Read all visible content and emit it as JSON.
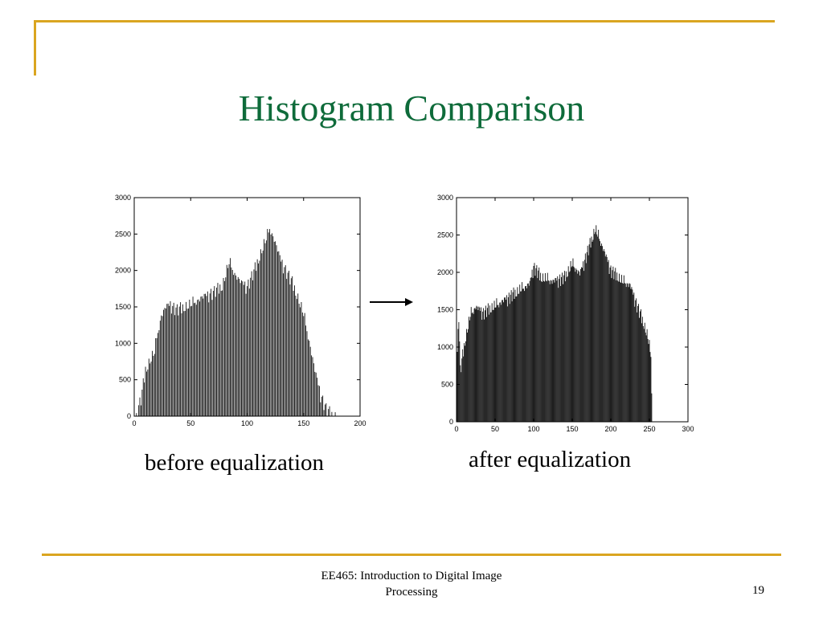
{
  "slide": {
    "title": "Histogram Comparison",
    "footer_line1": "EE465: Introduction to Digital Image",
    "footer_line2": "Processing",
    "page_number": "19",
    "accent_color": "#DAA520",
    "title_color": "#0E6B3A"
  },
  "captions": {
    "before": "before equalization",
    "after": "after equalization"
  },
  "chart_data": [
    {
      "type": "bar",
      "xlim": [
        0,
        200
      ],
      "ylim": [
        0,
        3000
      ],
      "xticks": [
        0,
        50,
        100,
        150,
        200
      ],
      "yticks": [
        0,
        500,
        1000,
        1500,
        2000,
        2500,
        3000
      ],
      "xrange_bins": [
        2,
        180
      ],
      "profile": [
        [
          2,
          0
        ],
        [
          4,
          150
        ],
        [
          6,
          250
        ],
        [
          8,
          450
        ],
        [
          10,
          650
        ],
        [
          14,
          780
        ],
        [
          18,
          900
        ],
        [
          20,
          1100
        ],
        [
          24,
          1400
        ],
        [
          28,
          1520
        ],
        [
          32,
          1550
        ],
        [
          38,
          1480
        ],
        [
          42,
          1500
        ],
        [
          50,
          1550
        ],
        [
          60,
          1650
        ],
        [
          70,
          1720
        ],
        [
          78,
          1800
        ],
        [
          84,
          2130
        ],
        [
          90,
          1950
        ],
        [
          95,
          1850
        ],
        [
          100,
          1800
        ],
        [
          106,
          2000
        ],
        [
          112,
          2250
        ],
        [
          118,
          2500
        ],
        [
          120,
          2600
        ],
        [
          124,
          2450
        ],
        [
          130,
          2150
        ],
        [
          140,
          1850
        ],
        [
          146,
          1600
        ],
        [
          150,
          1420
        ],
        [
          155,
          1050
        ],
        [
          160,
          650
        ],
        [
          165,
          320
        ],
        [
          170,
          120
        ],
        [
          175,
          30
        ],
        [
          180,
          0
        ]
      ]
    },
    {
      "type": "bar",
      "xlim": [
        0,
        300
      ],
      "ylim": [
        0,
        3000
      ],
      "xticks": [
        0,
        50,
        100,
        150,
        200,
        250,
        300
      ],
      "yticks": [
        0,
        500,
        1000,
        1500,
        2000,
        2500,
        3000
      ],
      "xrange_bins": [
        0,
        254
      ],
      "profile": [
        [
          0,
          700
        ],
        [
          3,
          1450
        ],
        [
          5,
          700
        ],
        [
          8,
          900
        ],
        [
          12,
          1150
        ],
        [
          18,
          1450
        ],
        [
          25,
          1560
        ],
        [
          35,
          1480
        ],
        [
          50,
          1570
        ],
        [
          70,
          1700
        ],
        [
          85,
          1800
        ],
        [
          95,
          1870
        ],
        [
          100,
          2100
        ],
        [
          110,
          1950
        ],
        [
          125,
          1900
        ],
        [
          140,
          1950
        ],
        [
          150,
          2130
        ],
        [
          160,
          2000
        ],
        [
          170,
          2300
        ],
        [
          175,
          2450
        ],
        [
          180,
          2600
        ],
        [
          188,
          2400
        ],
        [
          200,
          2050
        ],
        [
          215,
          1900
        ],
        [
          225,
          1850
        ],
        [
          235,
          1550
        ],
        [
          242,
          1350
        ],
        [
          248,
          1150
        ],
        [
          252,
          900
        ],
        [
          254,
          0
        ]
      ]
    }
  ]
}
